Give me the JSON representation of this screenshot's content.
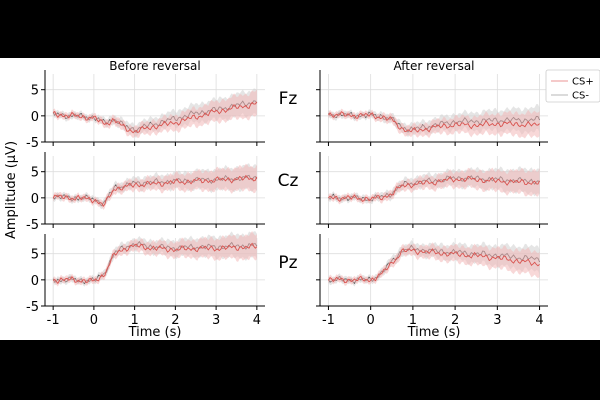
{
  "chart_data": {
    "type": "line",
    "ylabel": "Amplitude (µV)",
    "xlabel": "Time (s)",
    "column_titles": [
      "Before reversal",
      "After reversal"
    ],
    "row_labels": [
      "Fz",
      "Cz",
      "Pz"
    ],
    "xlim": [
      -1.2,
      4.2
    ],
    "ylim": [
      -5,
      8
    ],
    "xticks": [
      -1,
      0,
      1,
      2,
      3,
      4
    ],
    "xtick_labels": [
      "-1",
      "0",
      "1",
      "2",
      "3",
      "4"
    ],
    "yticks": [
      -5,
      0,
      5
    ],
    "ytick_labels": [
      "-5",
      "0",
      "5"
    ],
    "grid": true,
    "legend": {
      "position": "top-right",
      "entries": [
        "CS+",
        "CS-"
      ]
    },
    "series_colors": {
      "CS+": "#d9534f",
      "CS-": "#555555",
      "CS+_band": "#f2b8b8",
      "CS-_band": "#cfcfcf"
    },
    "x": [
      -1,
      -0.5,
      0,
      0.25,
      0.5,
      0.75,
      1,
      1.5,
      2,
      2.5,
      3,
      3.5,
      4
    ],
    "panels": [
      {
        "row": "Fz",
        "column": "Before reversal",
        "cs_plus": [
          0.3,
          0,
          -0.4,
          -1.5,
          -0.8,
          -2.3,
          -3.0,
          -2.0,
          -1.3,
          -0.2,
          0.8,
          1.6,
          2.3
        ],
        "cs_minus": [
          0.3,
          0,
          -0.3,
          -1.3,
          -0.6,
          -2.0,
          -2.6,
          -1.5,
          -0.5,
          0.5,
          1.2,
          2.0,
          2.8
        ]
      },
      {
        "row": "Fz",
        "column": "After reversal",
        "cs_plus": [
          0.3,
          0.1,
          0.1,
          -0.2,
          -0.8,
          -2.5,
          -3.0,
          -2.2,
          -1.7,
          -1.8,
          -1.5,
          -1.6,
          -1.8
        ],
        "cs_minus": [
          0.3,
          0.1,
          0.1,
          0,
          -0.7,
          -2.2,
          -2.6,
          -1.8,
          -1.1,
          -1.0,
          -0.8,
          -0.8,
          -0.7
        ]
      },
      {
        "row": "Cz",
        "column": "Before reversal",
        "cs_plus": [
          0.2,
          0,
          -0.3,
          -1.5,
          1.8,
          2.0,
          2.5,
          2.7,
          3.0,
          3.2,
          3.4,
          3.6,
          3.8
        ],
        "cs_minus": [
          0.2,
          0,
          -0.2,
          -1.2,
          2.0,
          2.3,
          2.8,
          3.0,
          3.2,
          3.4,
          3.5,
          3.7,
          3.9
        ]
      },
      {
        "row": "Cz",
        "column": "After reversal",
        "cs_plus": [
          0,
          0,
          -0.2,
          0,
          0.8,
          2.3,
          2.6,
          3.0,
          3.6,
          3.5,
          3.2,
          3.0,
          2.9
        ],
        "cs_minus": [
          0,
          0,
          -0.2,
          0.1,
          0.9,
          2.5,
          2.9,
          3.3,
          3.8,
          3.7,
          3.5,
          3.3,
          3.2
        ]
      },
      {
        "row": "Pz",
        "column": "Before reversal",
        "cs_plus": [
          0,
          0,
          -0.3,
          1.0,
          4.8,
          6.0,
          6.5,
          6.0,
          5.8,
          6.0,
          6.0,
          6.2,
          6.3
        ],
        "cs_minus": [
          0,
          0,
          -0.2,
          1.2,
          5.0,
          6.3,
          6.8,
          6.3,
          6.1,
          6.3,
          6.3,
          6.5,
          6.6
        ]
      },
      {
        "row": "Pz",
        "column": "After reversal",
        "cs_plus": [
          0,
          0,
          0,
          1.0,
          3.2,
          5.5,
          5.6,
          5.2,
          4.9,
          4.6,
          4.2,
          3.6,
          3.0
        ],
        "cs_minus": [
          0,
          0,
          0,
          1.2,
          3.5,
          5.7,
          5.9,
          5.5,
          5.3,
          5.0,
          4.7,
          4.3,
          3.9
        ]
      }
    ]
  }
}
